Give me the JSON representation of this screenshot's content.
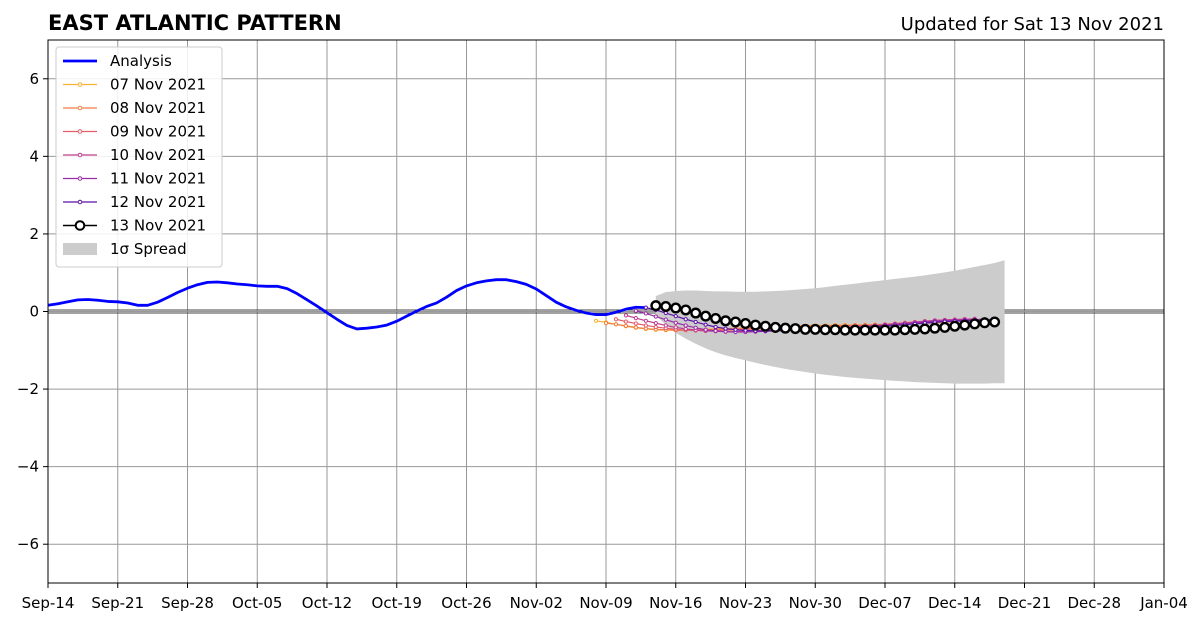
{
  "chart_data": {
    "type": "line",
    "title": "EAST ATLANTIC PATTERN",
    "subtitle": "Updated for Sat 13 Nov 2021",
    "xlabel": "",
    "ylabel": "",
    "xlim": [
      "2021-09-14",
      "2022-01-04"
    ],
    "ylim": [
      -7,
      7
    ],
    "x_ticks": [
      "2021-09-14",
      "2021-09-21",
      "2021-09-28",
      "2021-10-05",
      "2021-10-12",
      "2021-10-19",
      "2021-10-26",
      "2021-11-02",
      "2021-11-09",
      "2021-11-16",
      "2021-11-23",
      "2021-11-30",
      "2021-12-07",
      "2021-12-14",
      "2021-12-21",
      "2021-12-28",
      "2022-01-04"
    ],
    "x_tick_labels": [
      "Sep-14",
      "Sep-21",
      "Sep-28",
      "Oct-05",
      "Oct-12",
      "Oct-19",
      "Oct-26",
      "Nov-02",
      "Nov-09",
      "Nov-16",
      "Nov-23",
      "Nov-30",
      "Dec-07",
      "Dec-14",
      "Dec-21",
      "Dec-28",
      "Jan-04"
    ],
    "y_ticks": [
      -6,
      -4,
      -2,
      0,
      2,
      4,
      6
    ],
    "y_tick_labels": [
      "−6",
      "−4",
      "−2",
      "0",
      "2",
      "4",
      "6"
    ],
    "grid": true,
    "zero_line": true,
    "legend_position": "top-left",
    "legend_labels": {
      "analysis": "Analysis",
      "spread": "1σ Spread"
    },
    "analysis": {
      "name": "Analysis",
      "color": "#0000ff",
      "start": "2021-09-14",
      "values": [
        0.16,
        0.2,
        0.25,
        0.3,
        0.31,
        0.29,
        0.26,
        0.25,
        0.22,
        0.16,
        0.16,
        0.24,
        0.36,
        0.49,
        0.6,
        0.69,
        0.75,
        0.76,
        0.74,
        0.71,
        0.69,
        0.66,
        0.65,
        0.65,
        0.59,
        0.46,
        0.3,
        0.14,
        -0.03,
        -0.2,
        -0.36,
        -0.45,
        -0.43,
        -0.4,
        -0.35,
        -0.25,
        -0.12,
        0.01,
        0.13,
        0.22,
        0.37,
        0.54,
        0.66,
        0.74,
        0.79,
        0.82,
        0.82,
        0.77,
        0.7,
        0.58,
        0.41,
        0.24,
        0.12,
        0.03,
        -0.04,
        -0.08,
        -0.08,
        -0.02,
        0.06,
        0.11,
        0.1
      ]
    },
    "forecasts": [
      {
        "name": "07 Nov 2021",
        "color": "#fcb130",
        "start": "2021-11-08",
        "values": [
          -0.24,
          -0.28,
          -0.33,
          -0.38,
          -0.42,
          -0.45,
          -0.47,
          -0.48,
          -0.48,
          -0.48,
          -0.47,
          -0.46,
          -0.45,
          -0.44,
          -0.43,
          -0.42,
          -0.41,
          -0.4,
          -0.39,
          -0.38,
          -0.37,
          -0.37,
          -0.36,
          -0.36,
          -0.35,
          -0.35,
          -0.35,
          -0.34,
          -0.34,
          -0.34,
          -0.33,
          -0.32,
          -0.31,
          -0.3,
          -0.29,
          -0.28
        ]
      },
      {
        "name": "08 Nov 2021",
        "color": "#f57d42",
        "start": "2021-11-09",
        "values": [
          -0.3,
          -0.33,
          -0.37,
          -0.41,
          -0.44,
          -0.46,
          -0.47,
          -0.48,
          -0.48,
          -0.47,
          -0.47,
          -0.46,
          -0.45,
          -0.44,
          -0.43,
          -0.42,
          -0.41,
          -0.4,
          -0.39,
          -0.38,
          -0.38,
          -0.37,
          -0.37,
          -0.36,
          -0.36,
          -0.35,
          -0.35,
          -0.34,
          -0.33,
          -0.32,
          -0.31,
          -0.3,
          -0.29,
          -0.28,
          -0.27,
          -0.26
        ]
      },
      {
        "name": "09 Nov 2021",
        "color": "#e55c6b",
        "start": "2021-11-10",
        "values": [
          -0.2,
          -0.26,
          -0.31,
          -0.36,
          -0.4,
          -0.43,
          -0.46,
          -0.48,
          -0.49,
          -0.49,
          -0.49,
          -0.48,
          -0.47,
          -0.46,
          -0.45,
          -0.44,
          -0.43,
          -0.42,
          -0.42,
          -0.41,
          -0.4,
          -0.39,
          -0.39,
          -0.38,
          -0.37,
          -0.36,
          -0.35,
          -0.33,
          -0.31,
          -0.29,
          -0.27,
          -0.25,
          -0.23,
          -0.22,
          -0.21,
          -0.2
        ]
      },
      {
        "name": "10 Nov 2021",
        "color": "#c33d8f",
        "start": "2021-11-11",
        "values": [
          -0.1,
          -0.17,
          -0.24,
          -0.3,
          -0.36,
          -0.41,
          -0.45,
          -0.48,
          -0.5,
          -0.51,
          -0.52,
          -0.52,
          -0.51,
          -0.5,
          -0.49,
          -0.48,
          -0.47,
          -0.46,
          -0.46,
          -0.45,
          -0.44,
          -0.43,
          -0.42,
          -0.41,
          -0.39,
          -0.37,
          -0.35,
          -0.33,
          -0.31,
          -0.28,
          -0.25,
          -0.23,
          -0.22,
          -0.21,
          -0.2,
          -0.19
        ]
      },
      {
        "name": "11 Nov 2021",
        "color": "#9a2ba8",
        "start": "2021-11-12",
        "values": [
          0.02,
          -0.05,
          -0.13,
          -0.21,
          -0.29,
          -0.36,
          -0.42,
          -0.47,
          -0.5,
          -0.52,
          -0.53,
          -0.53,
          -0.52,
          -0.51,
          -0.5,
          -0.49,
          -0.48,
          -0.47,
          -0.46,
          -0.45,
          -0.44,
          -0.43,
          -0.41,
          -0.39,
          -0.37,
          -0.35,
          -0.33,
          -0.31,
          -0.29,
          -0.27,
          -0.25,
          -0.24,
          -0.23,
          -0.22,
          -0.21,
          -0.2
        ]
      },
      {
        "name": "12 Nov 2021",
        "color": "#5a11a8",
        "start": "2021-11-13",
        "values": [
          0.1,
          0.04,
          -0.04,
          -0.12,
          -0.2,
          -0.27,
          -0.34,
          -0.4,
          -0.44,
          -0.47,
          -0.49,
          -0.5,
          -0.5,
          -0.5,
          -0.49,
          -0.48,
          -0.47,
          -0.46,
          -0.45,
          -0.44,
          -0.43,
          -0.42,
          -0.41,
          -0.4,
          -0.38,
          -0.36,
          -0.34,
          -0.32,
          -0.3,
          -0.28,
          -0.26,
          -0.25,
          -0.24,
          -0.23,
          -0.22,
          -0.21
        ]
      },
      {
        "name": "13 Nov 2021",
        "color": "#000000",
        "start": "2021-11-14",
        "values": [
          0.15,
          0.13,
          0.09,
          0.04,
          -0.04,
          -0.12,
          -0.18,
          -0.24,
          -0.27,
          -0.31,
          -0.35,
          -0.38,
          -0.41,
          -0.43,
          -0.44,
          -0.46,
          -0.46,
          -0.47,
          -0.47,
          -0.48,
          -0.48,
          -0.48,
          -0.48,
          -0.48,
          -0.48,
          -0.47,
          -0.46,
          -0.45,
          -0.43,
          -0.41,
          -0.38,
          -0.35,
          -0.32,
          -0.29,
          -0.27
        ]
      }
    ],
    "spread": {
      "name": "1σ Spread",
      "color": "#cccccc",
      "start": "2021-11-14",
      "upper": [
        0.4,
        0.5,
        0.53,
        0.54,
        0.54,
        0.53,
        0.52,
        0.52,
        0.51,
        0.51,
        0.51,
        0.52,
        0.53,
        0.54,
        0.56,
        0.58,
        0.6,
        0.63,
        0.66,
        0.69,
        0.72,
        0.75,
        0.78,
        0.81,
        0.84,
        0.87,
        0.9,
        0.93,
        0.97,
        1.01,
        1.05,
        1.1,
        1.15,
        1.2,
        1.25,
        1.32
      ],
      "lower": [
        -0.1,
        -0.35,
        -0.55,
        -0.7,
        -0.83,
        -0.95,
        -1.05,
        -1.13,
        -1.2,
        -1.26,
        -1.32,
        -1.38,
        -1.43,
        -1.48,
        -1.52,
        -1.56,
        -1.6,
        -1.63,
        -1.66,
        -1.69,
        -1.71,
        -1.73,
        -1.75,
        -1.77,
        -1.79,
        -1.8,
        -1.82,
        -1.83,
        -1.84,
        -1.85,
        -1.86,
        -1.86,
        -1.86,
        -1.86,
        -1.85,
        -1.85
      ]
    }
  }
}
